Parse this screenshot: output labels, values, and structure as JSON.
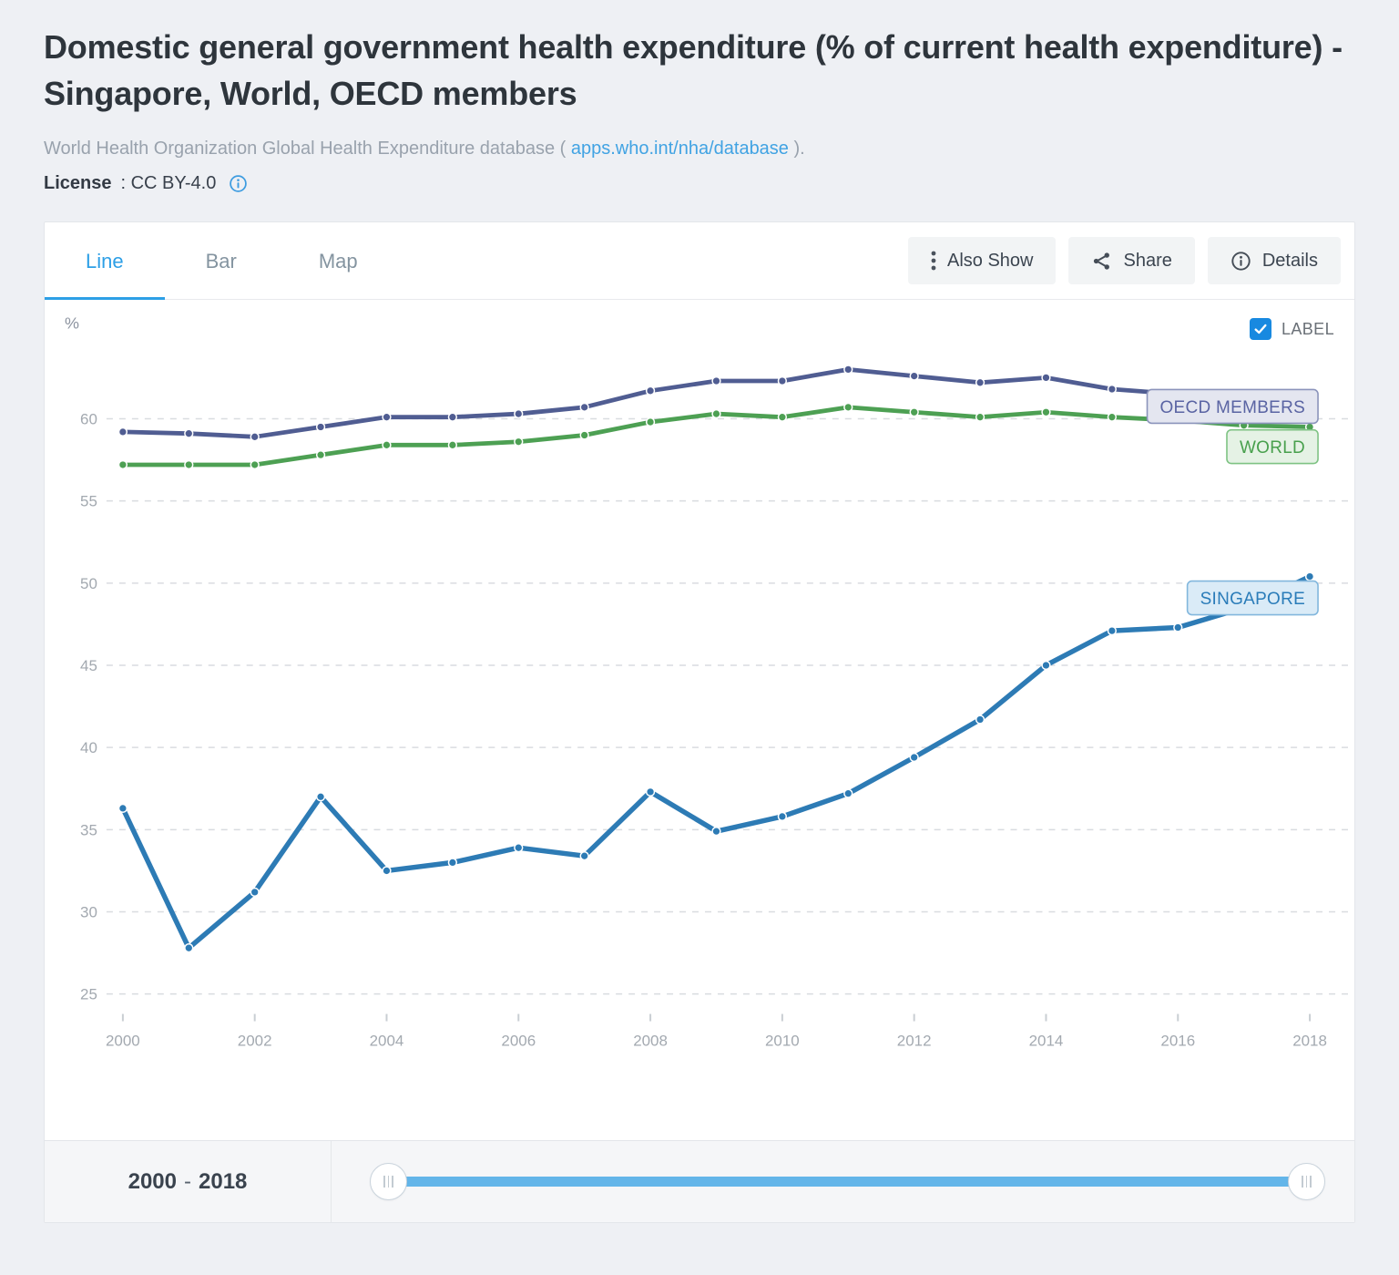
{
  "header": {
    "title": "Domestic general government health expenditure (% of current health expenditure) - Singapore, World, OECD members",
    "source_prefix": "World Health Organization Global Health Expenditure database ( ",
    "source_link": "apps.who.int/nha/database",
    "source_suffix": " ).",
    "license_label": "License",
    "license_value": ": CC BY-4.0"
  },
  "tabs": [
    {
      "label": "Line",
      "active": true
    },
    {
      "label": "Bar",
      "active": false
    },
    {
      "label": "Map",
      "active": false
    }
  ],
  "toolbar": {
    "also_show_label": "Also Show",
    "share_label": "Share",
    "details_label": "Details"
  },
  "chart_controls": {
    "label_toggle": "LABEL",
    "checked": true
  },
  "chart_data": {
    "type": "line",
    "unit_label": "%",
    "x": [
      2000,
      2001,
      2002,
      2003,
      2004,
      2005,
      2006,
      2007,
      2008,
      2009,
      2010,
      2011,
      2012,
      2013,
      2014,
      2015,
      2016,
      2017,
      2018
    ],
    "x_tick_labels": [
      "2000",
      "2002",
      "2004",
      "2006",
      "2008",
      "2010",
      "2012",
      "2014",
      "2016",
      "2018"
    ],
    "yticks": [
      60,
      55,
      50,
      45,
      40,
      35,
      30,
      25
    ],
    "ylim": [
      23.4,
      63.6
    ],
    "grid": "horizontal-dashed",
    "legend_position": "end-of-line-labels",
    "series": [
      {
        "name": "OECD MEMBERS",
        "color": "#505d92",
        "label_bg": "#e4e6f0",
        "label_border": "#8b94bb",
        "label_text_color": "#5a64a3",
        "label_anchor_value": 60.75,
        "line_width": 4.8,
        "values": [
          59.2,
          59.1,
          58.9,
          59.5,
          60.1,
          60.1,
          60.3,
          60.7,
          61.7,
          62.3,
          62.3,
          63.0,
          62.6,
          62.2,
          62.5,
          61.8,
          61.5,
          61.3,
          61.6
        ]
      },
      {
        "name": "WORLD",
        "color": "#4da053",
        "label_bg": "#e5f2e5",
        "label_border": "#7fc384",
        "label_text_color": "#48a04d",
        "label_anchor_value": 58.3,
        "line_width": 4.8,
        "values": [
          57.2,
          57.2,
          57.2,
          57.8,
          58.4,
          58.4,
          58.6,
          59.0,
          59.8,
          60.3,
          60.1,
          60.7,
          60.4,
          60.1,
          60.4,
          60.1,
          59.9,
          59.6,
          59.5
        ]
      },
      {
        "name": "SINGAPORE",
        "color": "#2d7bb5",
        "label_bg": "#daebf7",
        "label_border": "#82b7dd",
        "label_text_color": "#2a7cb9",
        "label_anchor_value": 49.1,
        "line_width": 5.5,
        "values": [
          36.3,
          27.8,
          31.2,
          37.0,
          32.5,
          33.0,
          33.9,
          33.4,
          37.3,
          34.9,
          35.8,
          37.2,
          39.4,
          41.7,
          45.0,
          47.1,
          47.3,
          48.5,
          50.4
        ]
      }
    ]
  },
  "timeline": {
    "start": "2000",
    "separator": "-",
    "end": "2018"
  }
}
